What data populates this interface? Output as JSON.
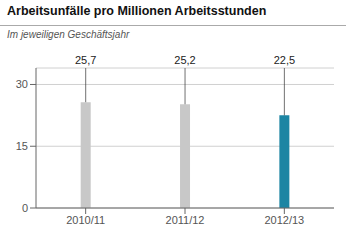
{
  "chart_data": {
    "type": "bar",
    "title": "Arbeitsunfälle pro Millionen Arbeitsstunden",
    "subtitle": "Im jeweiligen Geschäftsjahr",
    "categories": [
      "2010/11",
      "2011/12",
      "2012/13"
    ],
    "values": [
      25.7,
      25.2,
      22.5
    ],
    "value_labels": [
      "25,7",
      "25,2",
      "22,5"
    ],
    "data_labels": true,
    "colors": [
      "#c8c8c8",
      "#c8c8c8",
      "#1c85a3"
    ],
    "ylim": [
      0,
      34
    ],
    "yticks": [
      0,
      15,
      30
    ],
    "grid": true
  }
}
